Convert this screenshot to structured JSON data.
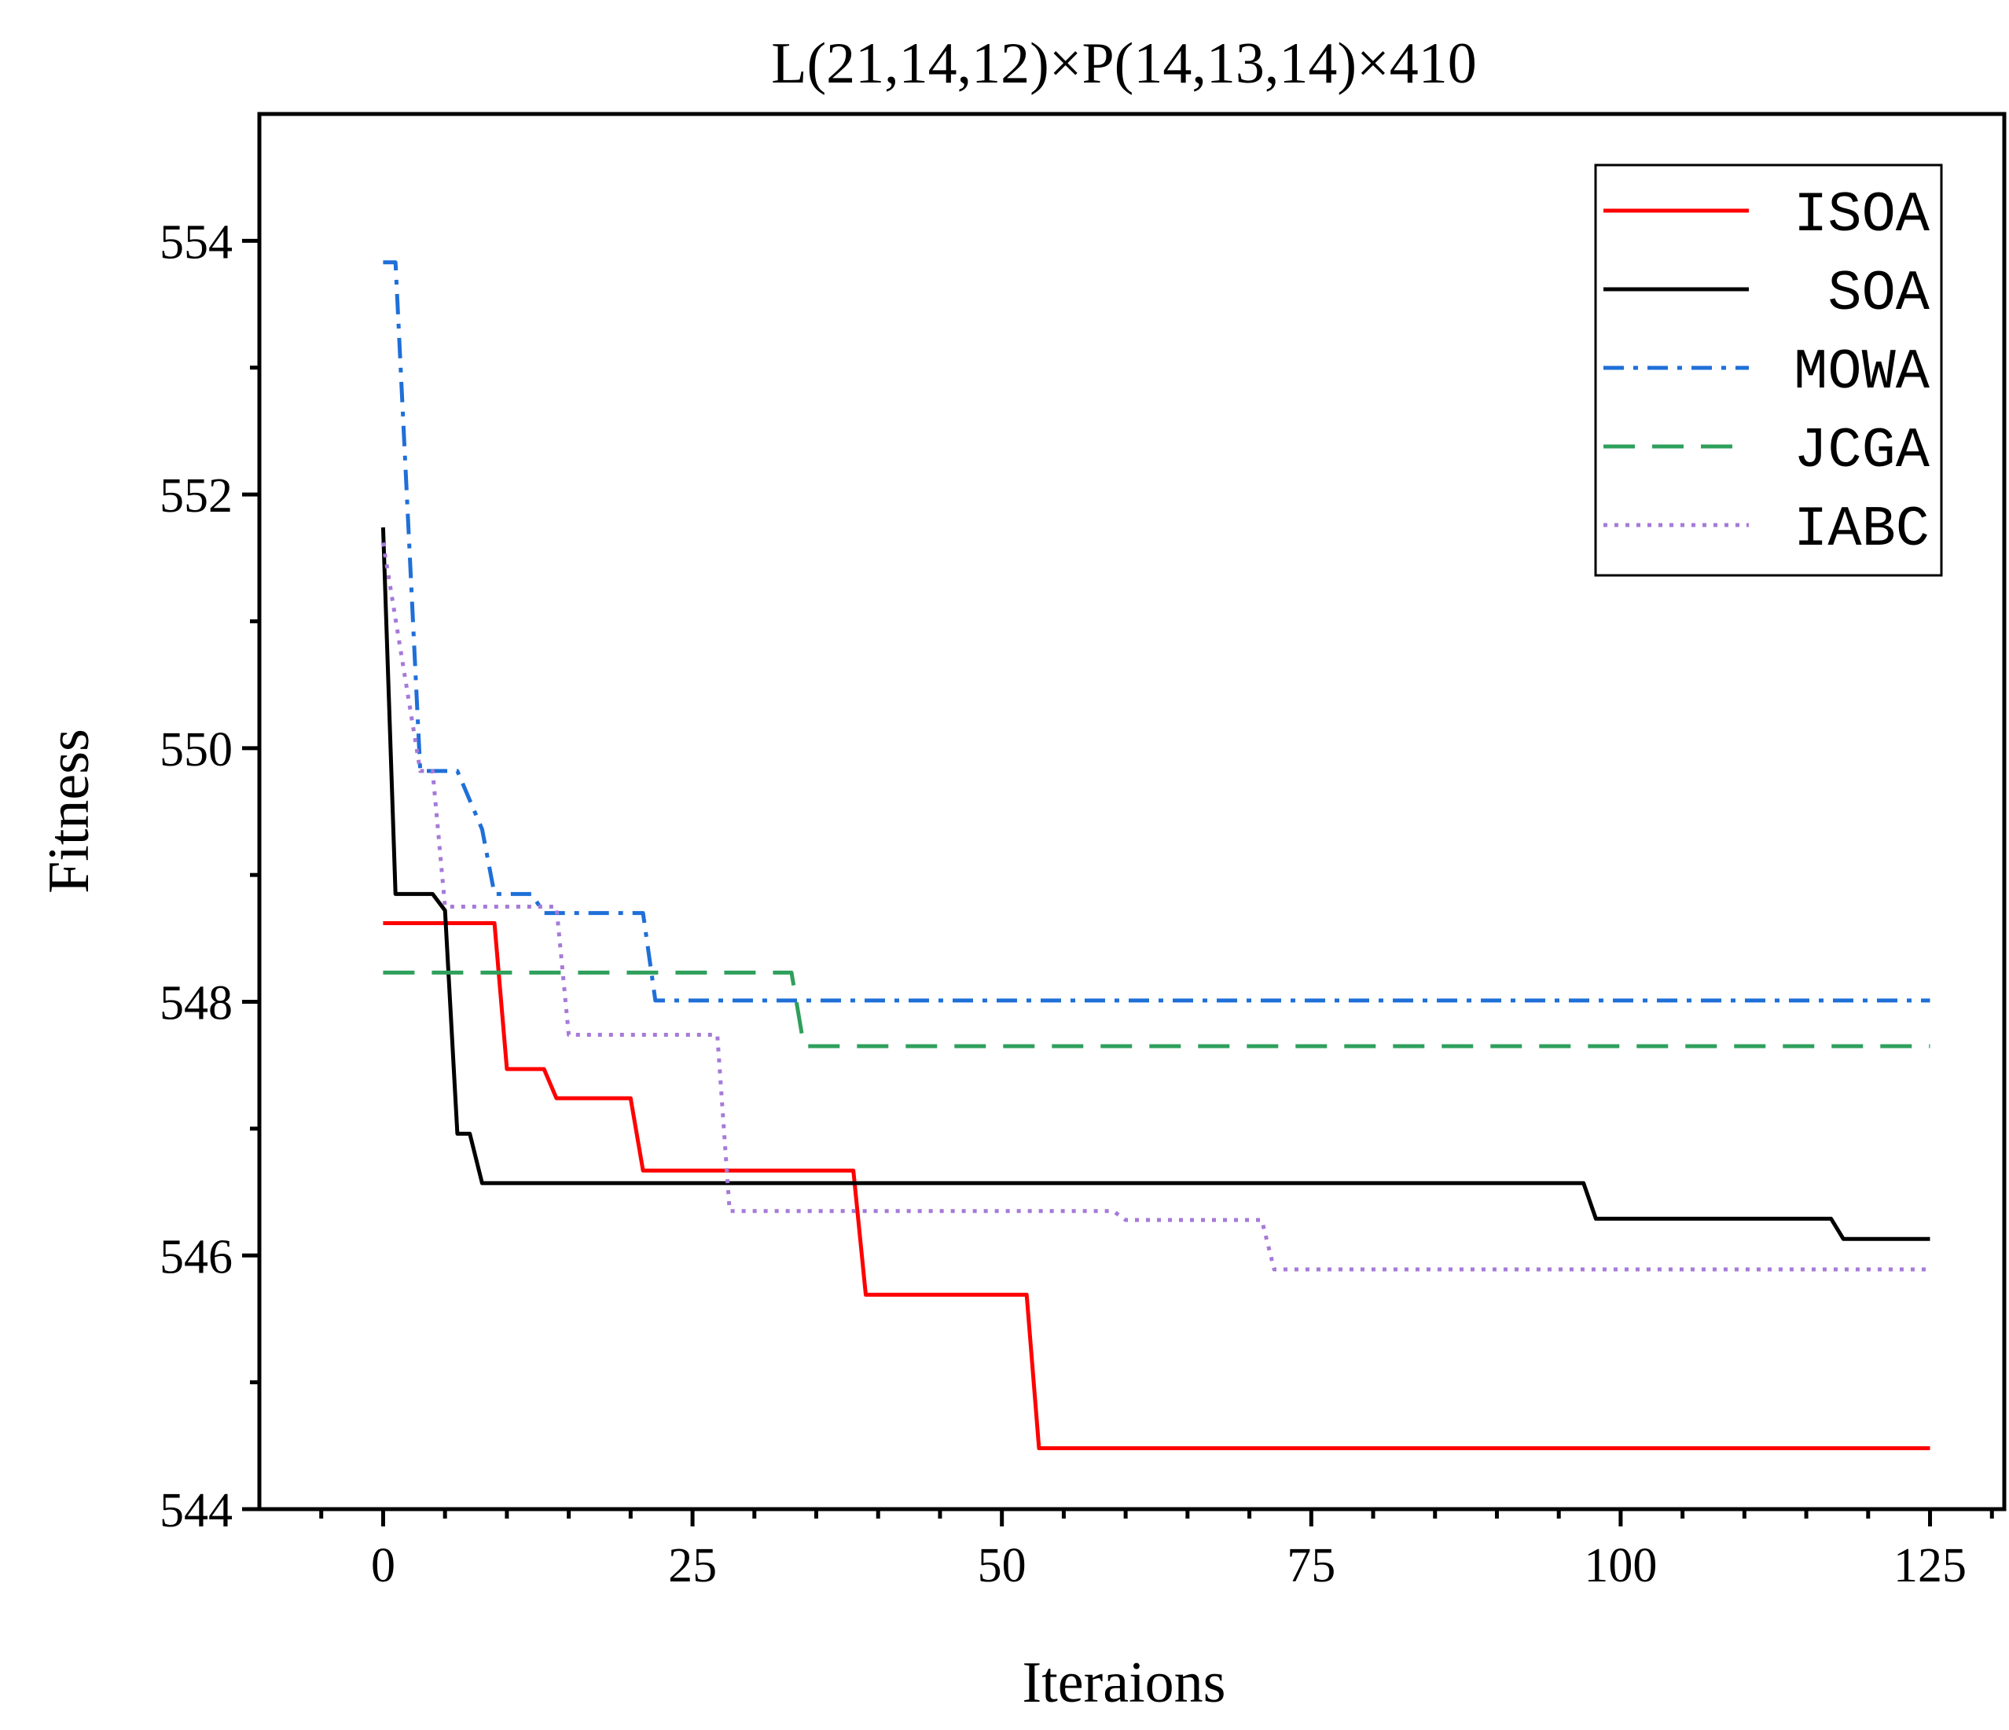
{
  "chart_data": {
    "type": "line",
    "title": "L(21,14,12)×P(14,13,14)×410",
    "xlabel": "Iteraions",
    "ylabel": "Fitness",
    "xlim": [
      -10,
      131
    ],
    "ylim": [
      544,
      555
    ],
    "xticks": [
      0,
      25,
      50,
      75,
      100,
      125
    ],
    "yticks": [
      544,
      546,
      548,
      550,
      552,
      554
    ],
    "grid": false,
    "legend_position": "top-right",
    "series": [
      {
        "name": "ISOA",
        "color": "#ff0000",
        "dash": "solid",
        "points": [
          [
            0,
            548.62
          ],
          [
            9,
            548.62
          ],
          [
            10,
            547.47
          ],
          [
            13,
            547.47
          ],
          [
            14,
            547.24
          ],
          [
            20,
            547.24
          ],
          [
            21,
            546.67
          ],
          [
            38,
            546.67
          ],
          [
            39,
            545.69
          ],
          [
            52,
            545.69
          ],
          [
            53,
            544.48
          ],
          [
            125,
            544.48
          ]
        ]
      },
      {
        "name": "SOA",
        "color": "#000000",
        "dash": "solid",
        "points": [
          [
            0,
            551.74
          ],
          [
            1,
            548.85
          ],
          [
            4,
            548.85
          ],
          [
            5,
            548.72
          ],
          [
            6,
            546.96
          ],
          [
            7,
            546.96
          ],
          [
            8,
            546.57
          ],
          [
            97,
            546.57
          ],
          [
            98,
            546.29
          ],
          [
            117,
            546.29
          ],
          [
            118,
            546.13
          ],
          [
            125,
            546.13
          ]
        ]
      },
      {
        "name": "MOWA",
        "color": "#1f6fd8",
        "dash": "dashdot",
        "points": [
          [
            0,
            553.83
          ],
          [
            1,
            553.83
          ],
          [
            3,
            549.82
          ],
          [
            6,
            549.82
          ],
          [
            8,
            549.36
          ],
          [
            9,
            548.85
          ],
          [
            12,
            548.85
          ],
          [
            13,
            548.7
          ],
          [
            21,
            548.7
          ],
          [
            22,
            548.01
          ],
          [
            125,
            548.01
          ]
        ]
      },
      {
        "name": "JCGA",
        "color": "#2ea05c",
        "dash": "dashed",
        "points": [
          [
            0,
            548.23
          ],
          [
            33,
            548.23
          ],
          [
            34,
            547.65
          ],
          [
            125,
            547.65
          ]
        ]
      },
      {
        "name": "IABC",
        "color": "#a67ad8",
        "dash": "dotted",
        "points": [
          [
            0,
            551.62
          ],
          [
            3,
            549.82
          ],
          [
            4,
            549.82
          ],
          [
            5,
            548.75
          ],
          [
            14,
            548.75
          ],
          [
            15,
            547.74
          ],
          [
            27,
            547.74
          ],
          [
            28,
            546.35
          ],
          [
            59,
            546.35
          ],
          [
            60,
            546.28
          ],
          [
            71,
            546.28
          ],
          [
            72,
            545.89
          ],
          [
            125,
            545.89
          ]
        ]
      }
    ]
  }
}
